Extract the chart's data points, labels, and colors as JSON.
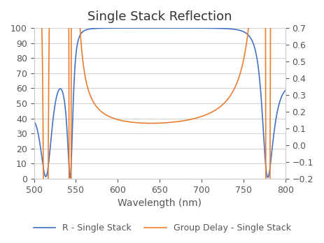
{
  "title": "Single Stack Reflection",
  "xlabel": "Wavelength (nm)",
  "xlim": [
    500,
    800
  ],
  "ylim_left": [
    0,
    100
  ],
  "ylim_right": [
    -0.2,
    0.7
  ],
  "yticks_left": [
    0,
    10,
    20,
    30,
    40,
    50,
    60,
    70,
    80,
    90,
    100
  ],
  "yticks_right": [
    -0.2,
    -0.1,
    0,
    0.1,
    0.2,
    0.3,
    0.4,
    0.5,
    0.6,
    0.7
  ],
  "xticks": [
    500,
    550,
    600,
    650,
    700,
    750,
    800
  ],
  "line1_color": "#4472C4",
  "line2_color": "#ED7D31",
  "legend1": "R - Single Stack",
  "legend2": "Group Delay - Single Stack",
  "background_color": "#ffffff",
  "grid_color": "#d0d0d0",
  "title_fontsize": 13,
  "axis_fontsize": 10,
  "tick_fontsize": 9,
  "legend_fontsize": 9
}
